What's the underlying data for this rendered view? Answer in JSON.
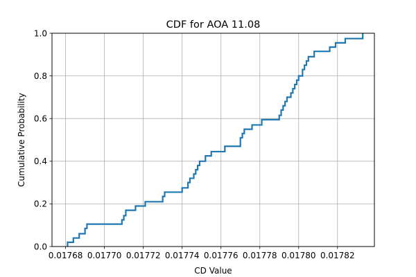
{
  "chart_data": {
    "type": "line",
    "title": "CDF for AOA 11.08",
    "xlabel": "CD Value",
    "ylabel": "Cumulative Probability",
    "xlim": [
      0.017673,
      0.017839
    ],
    "ylim": [
      0.0,
      1.0
    ],
    "grid": true,
    "step": "post",
    "x_ticks": [
      0.01768,
      0.0177,
      0.01772,
      0.01774,
      0.01776,
      0.01778,
      0.0178,
      0.01782
    ],
    "x_tick_labels": [
      "0.01768",
      "0.01770",
      "0.01772",
      "0.01774",
      "0.01776",
      "0.01778",
      "0.01780",
      "0.01782"
    ],
    "y_ticks": [
      0.0,
      0.2,
      0.4,
      0.6,
      0.8,
      1.0
    ],
    "y_tick_labels": [
      "0.0",
      "0.2",
      "0.4",
      "0.6",
      "0.8",
      "1.0"
    ],
    "colors": {
      "line": "#1f77b4",
      "grid": "#b0b0b0",
      "axes": "#000000"
    },
    "series": [
      {
        "x": [
          0.017681,
          0.017684,
          0.017687,
          0.01769,
          0.017691,
          0.017709,
          0.01771,
          0.017711,
          0.017716,
          0.017721,
          0.01773,
          0.017731,
          0.01774,
          0.017743,
          0.017744,
          0.017746,
          0.017747,
          0.017748,
          0.017749,
          0.017752,
          0.017755,
          0.017762,
          0.01777,
          0.017771,
          0.017772,
          0.017776,
          0.017781,
          0.01779,
          0.017791,
          0.017792,
          0.017793,
          0.017794,
          0.017796,
          0.017797,
          0.017798,
          0.017799,
          0.0178,
          0.017802,
          0.017803,
          0.017804,
          0.017805,
          0.017808,
          0.017816,
          0.017819,
          0.017824,
          0.017833
        ],
        "y": [
          0.02,
          0.04,
          0.06,
          0.085,
          0.105,
          0.125,
          0.145,
          0.17,
          0.19,
          0.21,
          0.235,
          0.255,
          0.275,
          0.3,
          0.32,
          0.34,
          0.36,
          0.38,
          0.4,
          0.425,
          0.445,
          0.47,
          0.51,
          0.53,
          0.55,
          0.57,
          0.595,
          0.615,
          0.64,
          0.66,
          0.68,
          0.7,
          0.72,
          0.74,
          0.76,
          0.78,
          0.8,
          0.83,
          0.85,
          0.87,
          0.89,
          0.915,
          0.935,
          0.955,
          0.975,
          1.0
        ]
      }
    ]
  }
}
